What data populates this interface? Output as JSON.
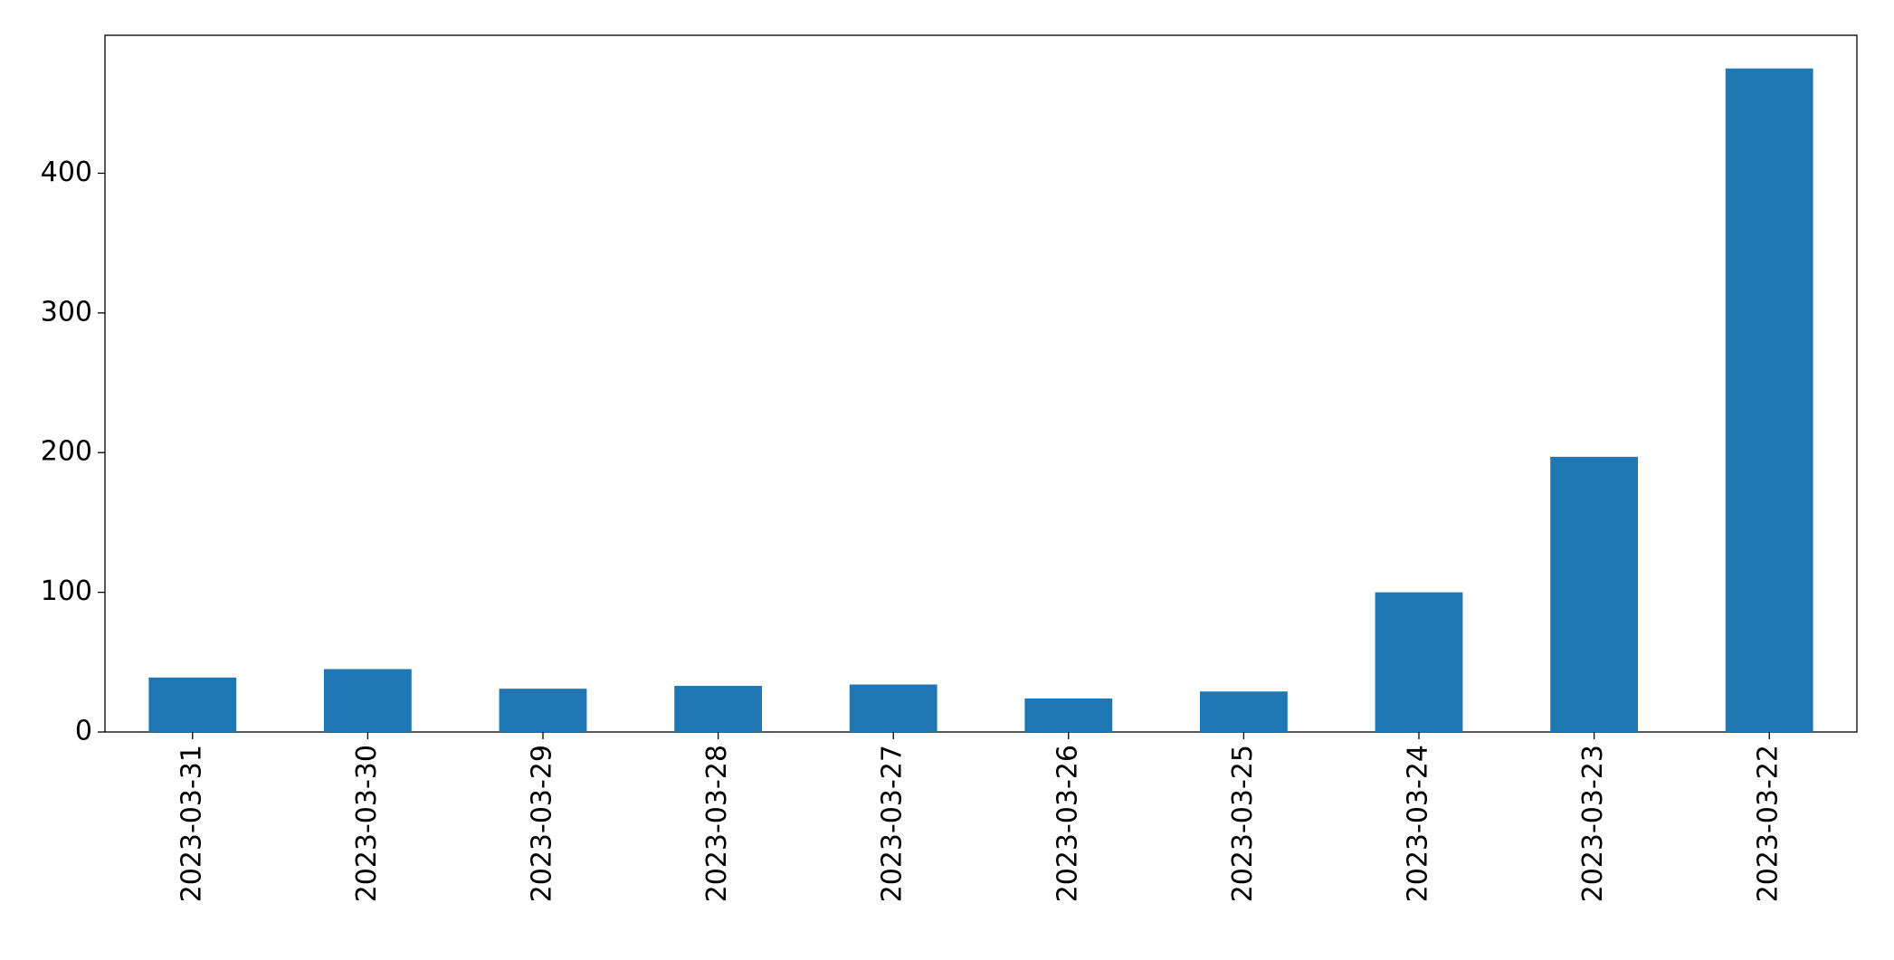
{
  "chart_data": {
    "type": "bar",
    "categories": [
      "2023-03-31",
      "2023-03-30",
      "2023-03-29",
      "2023-03-28",
      "2023-03-27",
      "2023-03-26",
      "2023-03-25",
      "2023-03-24",
      "2023-03-23",
      "2023-03-22"
    ],
    "values": [
      39,
      45,
      31,
      33,
      34,
      24,
      29,
      100,
      197,
      475
    ],
    "color": "#1f77b4",
    "ylim": [
      0,
      498.75
    ],
    "yticks": [
      0,
      100,
      200,
      300,
      400
    ],
    "grid": false
  }
}
